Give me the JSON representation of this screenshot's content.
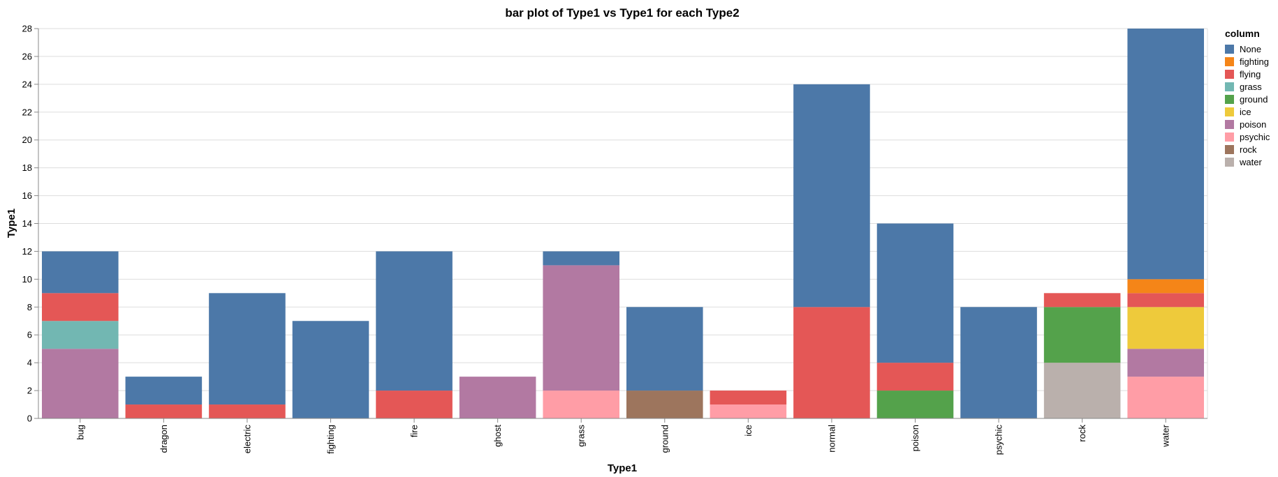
{
  "chart_data": {
    "type": "bar",
    "stacked": true,
    "title": "bar plot of Type1 vs Type1 for each Type2",
    "xlabel": "Type1",
    "ylabel": "Type1",
    "ylim": [
      0,
      28
    ],
    "yticks": [
      0,
      2,
      4,
      6,
      8,
      10,
      12,
      14,
      16,
      18,
      20,
      22,
      24,
      26,
      28
    ],
    "grid": true,
    "legend_title": "column",
    "legend_position": "right",
    "categories": [
      "bug",
      "dragon",
      "electric",
      "fighting",
      "fire",
      "ghost",
      "grass",
      "ground",
      "ice",
      "normal",
      "poison",
      "psychic",
      "rock",
      "water"
    ],
    "series": [
      {
        "name": "water",
        "color": "#bab0ac",
        "values": [
          0,
          0,
          0,
          0,
          0,
          0,
          0,
          0,
          0,
          0,
          0,
          0,
          4,
          0
        ]
      },
      {
        "name": "rock",
        "color": "#9d755d",
        "values": [
          0,
          0,
          0,
          0,
          0,
          0,
          0,
          2,
          0,
          0,
          0,
          0,
          0,
          0
        ]
      },
      {
        "name": "psychic",
        "color": "#ff9da6",
        "values": [
          0,
          0,
          0,
          0,
          0,
          0,
          2,
          0,
          1,
          0,
          0,
          0,
          0,
          3
        ]
      },
      {
        "name": "poison",
        "color": "#b279a2",
        "values": [
          5,
          0,
          0,
          0,
          0,
          3,
          9,
          0,
          0,
          0,
          0,
          0,
          0,
          2
        ]
      },
      {
        "name": "ice",
        "color": "#eeca3b",
        "values": [
          0,
          0,
          0,
          0,
          0,
          0,
          0,
          0,
          0,
          0,
          0,
          0,
          0,
          3
        ]
      },
      {
        "name": "ground",
        "color": "#54a24b",
        "values": [
          0,
          0,
          0,
          0,
          0,
          0,
          0,
          0,
          0,
          0,
          2,
          0,
          4,
          0
        ]
      },
      {
        "name": "grass",
        "color": "#72b7b2",
        "values": [
          2,
          0,
          0,
          0,
          0,
          0,
          0,
          0,
          0,
          0,
          0,
          0,
          0,
          0
        ]
      },
      {
        "name": "flying",
        "color": "#e45756",
        "values": [
          2,
          1,
          1,
          0,
          2,
          0,
          0,
          0,
          1,
          8,
          2,
          0,
          1,
          1
        ]
      },
      {
        "name": "fighting",
        "color": "#f58518",
        "values": [
          0,
          0,
          0,
          0,
          0,
          0,
          0,
          0,
          0,
          0,
          0,
          0,
          0,
          1
        ]
      },
      {
        "name": "None",
        "color": "#4c78a8",
        "values": [
          3,
          2,
          8,
          7,
          10,
          0,
          1,
          6,
          0,
          16,
          10,
          8,
          0,
          18
        ]
      }
    ],
    "legend_order": [
      "None",
      "fighting",
      "flying",
      "grass",
      "ground",
      "ice",
      "poison",
      "psychic",
      "rock",
      "water"
    ]
  }
}
